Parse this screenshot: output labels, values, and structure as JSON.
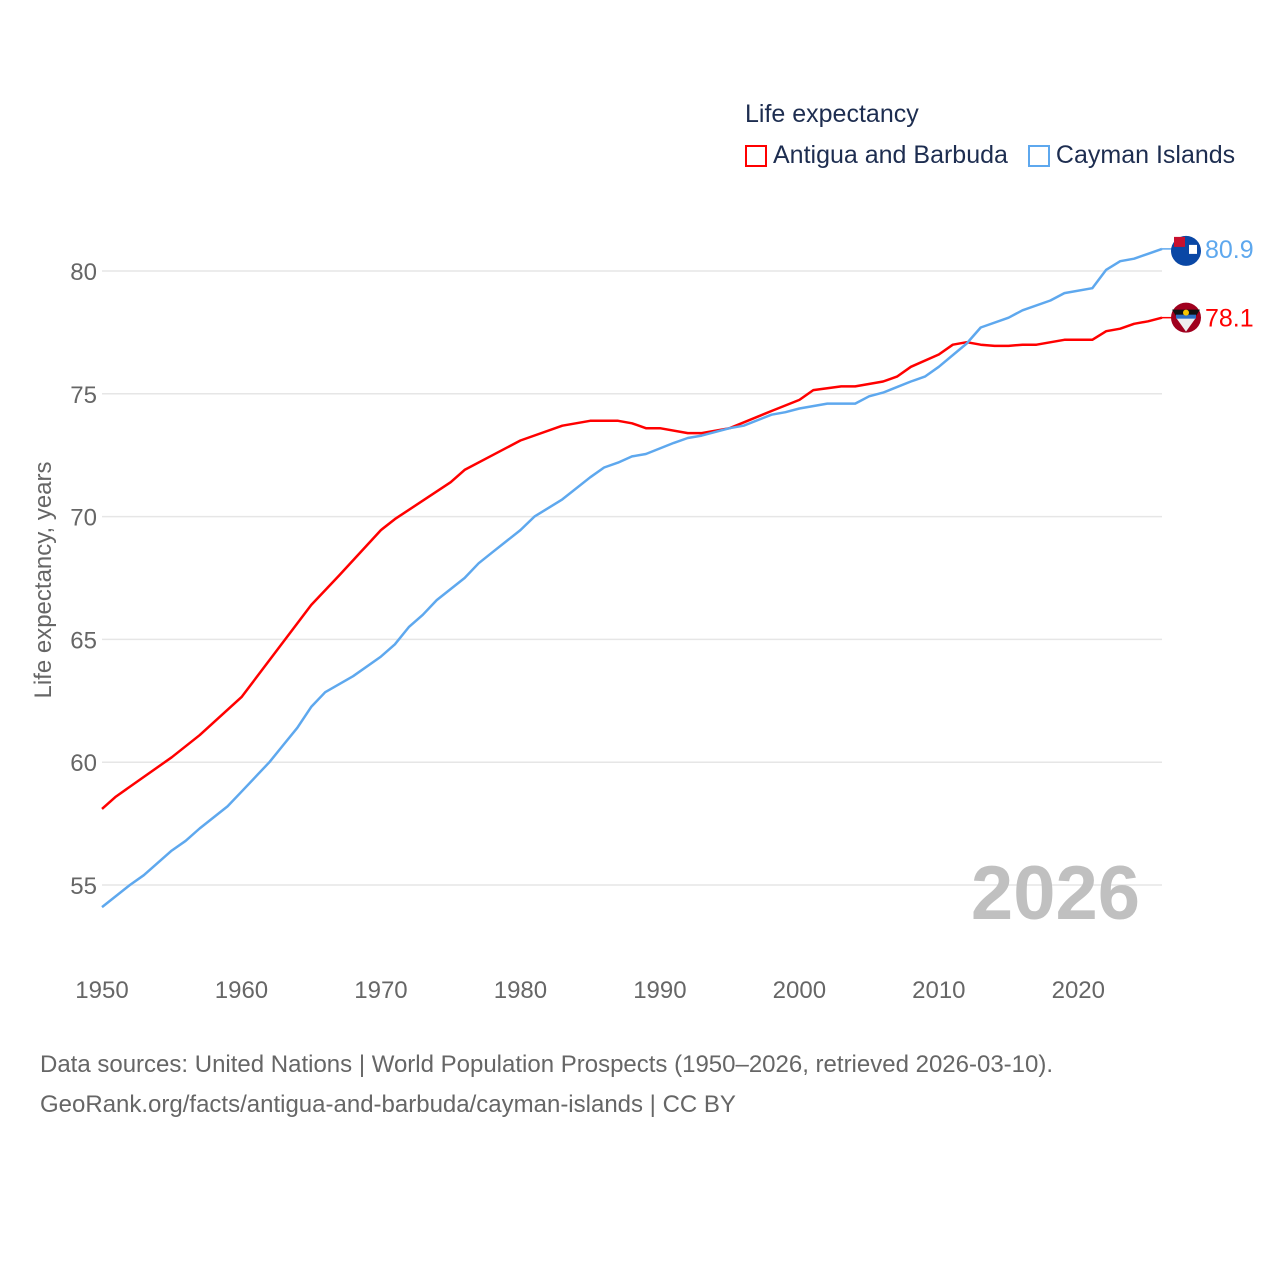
{
  "chart_data": {
    "type": "line",
    "title": "",
    "xlabel": "",
    "ylabel": "Life expectancy, years",
    "xlim": [
      1950,
      2026
    ],
    "ylim": [
      53.3,
      82.5
    ],
    "xticks": [
      1950,
      1960,
      1970,
      1980,
      1990,
      2000,
      2010,
      2020
    ],
    "yticks": [
      55,
      60,
      65,
      70,
      75,
      80
    ],
    "grid": true,
    "legend": {
      "title": "Life expectancy",
      "placement": "top-right"
    },
    "year_label": "2026",
    "series": [
      {
        "name": "Antigua and Barbuda",
        "color": "#ff0000",
        "end_label": "78.1",
        "x": [
          1950,
          1951,
          1955,
          1957,
          1960,
          1965,
          1967,
          1970,
          1971,
          1975,
          1976,
          1978,
          1980,
          1983,
          1985,
          1987,
          1988,
          1989,
          1990,
          1992,
          1993,
          1995,
          1998,
          2000,
          2001,
          2003,
          2004,
          2006,
          2007,
          2008,
          2010,
          2011,
          2012,
          2013,
          2014,
          2015,
          2016,
          2017,
          2019,
          2021,
          2022,
          2023,
          2024,
          2025,
          2026
        ],
        "y": [
          58.1,
          58.6,
          60.2,
          61.1,
          62.65,
          66.4,
          67.6,
          69.45,
          69.9,
          71.4,
          71.9,
          72.5,
          73.1,
          73.7,
          73.9,
          73.9,
          73.8,
          73.6,
          73.6,
          73.4,
          73.4,
          73.6,
          74.3,
          74.75,
          75.15,
          75.3,
          75.3,
          75.5,
          75.7,
          76.1,
          76.6,
          77.0,
          77.1,
          77.0,
          76.95,
          76.95,
          77.0,
          77.0,
          77.2,
          77.2,
          77.55,
          77.65,
          77.85,
          77.95,
          78.1
        ]
      },
      {
        "name": "Cayman Islands",
        "color": "#5ea8ee",
        "end_label": "80.9",
        "x": [
          1950,
          1952,
          1953,
          1955,
          1956,
          1957,
          1959,
          1960,
          1962,
          1963,
          1964,
          1965,
          1966,
          1968,
          1970,
          1971,
          1972,
          1973,
          1974,
          1976,
          1977,
          1978,
          1980,
          1981,
          1983,
          1985,
          1986,
          1987,
          1988,
          1989,
          1991,
          1992,
          1993,
          1995,
          1996,
          1998,
          1999,
          2000,
          2002,
          2004,
          2005,
          2006,
          2008,
          2009,
          2010,
          2012,
          2013,
          2015,
          2016,
          2018,
          2019,
          2021,
          2022,
          2023,
          2024,
          2025,
          2026
        ],
        "y": [
          54.1,
          55.0,
          55.4,
          56.4,
          56.8,
          57.3,
          58.2,
          58.8,
          60.0,
          60.7,
          61.4,
          62.25,
          62.85,
          63.5,
          64.3,
          64.8,
          65.5,
          66.0,
          66.6,
          67.5,
          68.1,
          68.55,
          69.45,
          70.0,
          70.7,
          71.6,
          72.0,
          72.2,
          72.45,
          72.55,
          73.0,
          73.2,
          73.3,
          73.6,
          73.7,
          74.15,
          74.25,
          74.4,
          74.6,
          74.6,
          74.9,
          75.05,
          75.5,
          75.7,
          76.1,
          77.05,
          77.7,
          78.1,
          78.4,
          78.8,
          79.1,
          79.3,
          80.05,
          80.4,
          80.5,
          80.7,
          80.9
        ]
      }
    ]
  },
  "sources": {
    "line1": "Data sources: United Nations | World Population Prospects (1950–2026, retrieved 2026-03-10).",
    "line2": "GeoRank.org/facts/antigua-and-barbuda/cayman-islands | CC BY"
  }
}
